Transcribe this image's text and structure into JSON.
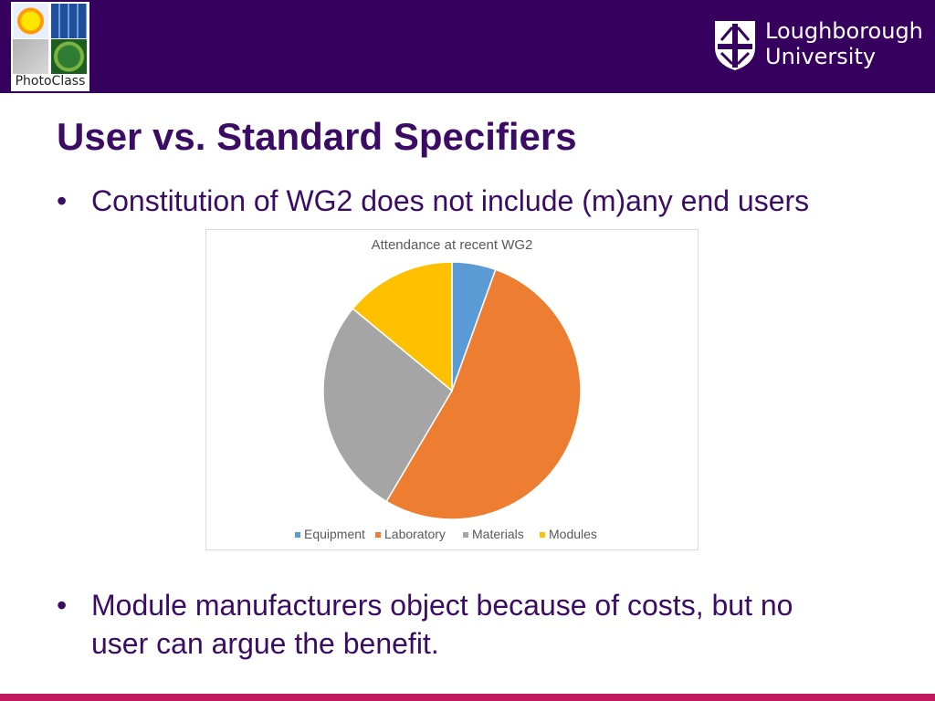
{
  "header": {
    "left_logo_caption": "PhotoClass",
    "university_line1": "Loughborough",
    "university_line2": "University"
  },
  "slide": {
    "title": "User vs. Standard Specifiers",
    "bullets": [
      "Constitution of WG2 does not include (m)any end users",
      "Module manufacturers object because of costs, but no",
      "user can argue the benefit."
    ],
    "bullet_glyph": "•"
  },
  "colors": {
    "header_bg": "#35005e",
    "title": "#3b0c63",
    "bottom_bar": "#c2185b"
  },
  "chart_data": {
    "type": "pie",
    "title": "Attendance at recent WG2",
    "categories": [
      "Equipment",
      "Laboratory",
      "Materials",
      "Modules"
    ],
    "values": [
      5.5,
      53,
      27.5,
      14
    ],
    "colors": [
      "#5b9bd5",
      "#ed7d31",
      "#a5a5a5",
      "#ffc000"
    ],
    "legend_position": "bottom"
  }
}
